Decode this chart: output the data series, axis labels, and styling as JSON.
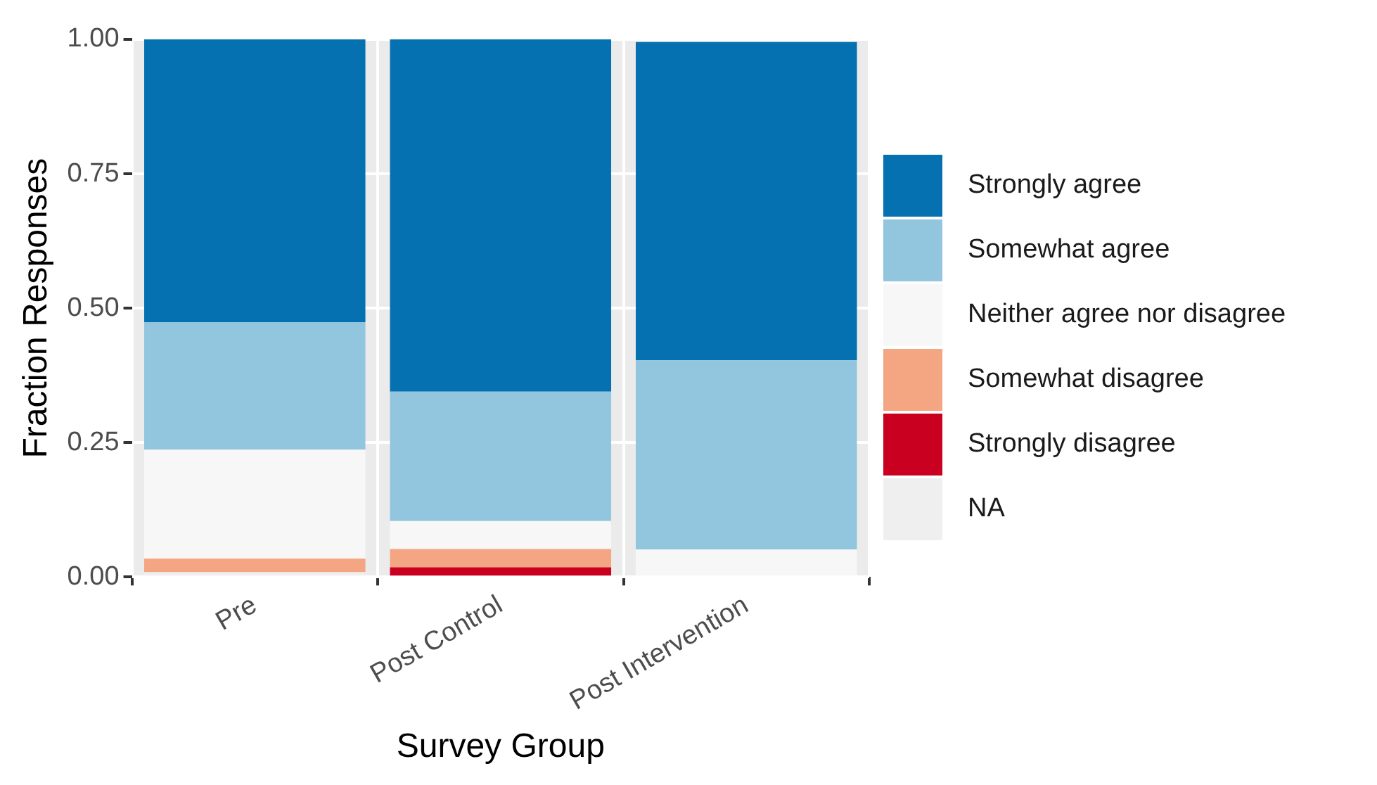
{
  "chart_data": {
    "type": "bar",
    "stacked": true,
    "xlabel": "Survey Group",
    "ylabel": "Fraction Responses",
    "categories": [
      "Pre",
      "Post Control",
      "Post Intervention"
    ],
    "series": [
      {
        "name": "NA",
        "color": "#efefef",
        "values": [
          0.009,
          0,
          0
        ]
      },
      {
        "name": "Strongly disagree",
        "color": "#ca0020",
        "values": [
          0,
          0.018,
          0
        ]
      },
      {
        "name": "Somewhat disagree",
        "color": "#f4a582",
        "values": [
          0.025,
          0.034,
          0
        ]
      },
      {
        "name": "Neither agree nor disagree",
        "color": "#f7f7f7",
        "values": [
          0.203,
          0.052,
          0.051
        ]
      },
      {
        "name": "Somewhat agree",
        "color": "#92c5de",
        "values": [
          0.237,
          0.241,
          0.352
        ]
      },
      {
        "name": "Strongly agree",
        "color": "#0571b0",
        "values": [
          0.526,
          0.655,
          0.592
        ]
      }
    ],
    "ylim": [
      0,
      1
    ],
    "yticks": [
      {
        "value": 0,
        "label": "0.00"
      },
      {
        "value": 0.25,
        "label": "0.25"
      },
      {
        "value": 0.5,
        "label": "0.50"
      },
      {
        "value": 0.75,
        "label": "0.75"
      },
      {
        "value": 1,
        "label": "1.00"
      }
    ],
    "grid": true,
    "legend": "right"
  }
}
